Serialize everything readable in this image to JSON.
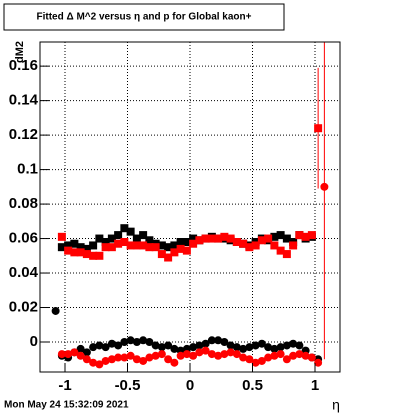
{
  "chart_data": {
    "type": "scatter",
    "title": "Fitted Δ M^2 versus η and p for Global kaon+",
    "y_label": "dM2",
    "x_label": "η",
    "timestamp": "Mon May 24 15:32:09 2021",
    "xlim": [
      -1.2,
      1.2
    ],
    "ylim": [
      -0.0174,
      0.174
    ],
    "xticks": [
      -1,
      -0.5,
      0,
      0.5,
      1
    ],
    "yticks": [
      0,
      0.02,
      0.04,
      0.06,
      0.08,
      0.1,
      0.12,
      0.14,
      0.16
    ],
    "grid": true,
    "series": [
      {
        "color": "#000000",
        "marker": "square",
        "x": [
          -1.025,
          -0.975,
          -0.925,
          -0.875,
          -0.825,
          -0.775,
          -0.725,
          -0.675,
          -0.625,
          -0.575,
          -0.525,
          -0.475,
          -0.425,
          -0.375,
          -0.325,
          -0.275,
          -0.225,
          -0.175,
          -0.125,
          -0.075,
          -0.025,
          0.025,
          0.075,
          0.125,
          0.175,
          0.225,
          0.275,
          0.325,
          0.375,
          0.425,
          0.475,
          0.525,
          0.575,
          0.625,
          0.675,
          0.725,
          0.775,
          0.825,
          0.875,
          0.925,
          0.975
        ],
        "values": [
          0.055,
          0.056,
          0.057,
          0.055,
          0.054,
          0.056,
          0.06,
          0.058,
          0.06,
          0.062,
          0.066,
          0.064,
          0.06,
          0.062,
          0.059,
          0.057,
          0.056,
          0.055,
          0.056,
          0.058,
          0.058,
          0.06,
          0.059,
          0.06,
          0.061,
          0.06,
          0.06,
          0.059,
          0.058,
          0.057,
          0.056,
          0.058,
          0.06,
          0.059,
          0.061,
          0.062,
          0.06,
          0.058,
          0.062,
          0.06,
          0.061
        ]
      },
      {
        "color": "#ff0000",
        "marker": "square",
        "x": [
          -1.025,
          -0.975,
          -0.925,
          -0.875,
          -0.825,
          -0.775,
          -0.725,
          -0.675,
          -0.625,
          -0.575,
          -0.525,
          -0.475,
          -0.425,
          -0.375,
          -0.325,
          -0.275,
          -0.225,
          -0.175,
          -0.125,
          -0.075,
          -0.025,
          0.025,
          0.075,
          0.125,
          0.175,
          0.225,
          0.275,
          0.325,
          0.375,
          0.425,
          0.475,
          0.525,
          0.575,
          0.625,
          0.675,
          0.725,
          0.775,
          0.825,
          0.875,
          0.925,
          0.975
        ],
        "values": [
          0.061,
          0.053,
          0.052,
          0.052,
          0.051,
          0.05,
          0.05,
          0.055,
          0.055,
          0.057,
          0.058,
          0.056,
          0.056,
          0.056,
          0.055,
          0.055,
          0.051,
          0.049,
          0.052,
          0.054,
          0.053,
          0.057,
          0.059,
          0.06,
          0.06,
          0.06,
          0.061,
          0.06,
          0.058,
          0.057,
          0.055,
          0.056,
          0.059,
          0.06,
          0.056,
          0.053,
          0.051,
          0.056,
          0.062,
          0.061,
          0.062
        ]
      },
      {
        "color": "#ff0000",
        "marker": "square",
        "x": [
          1.025
        ],
        "values": [
          0.124
        ],
        "errors": [
          0.035
        ]
      },
      {
        "color": "#000000",
        "marker": "circle",
        "x": [
          -1.075,
          -1.025,
          -0.975,
          -0.925,
          -0.875,
          -0.825,
          -0.775,
          -0.725,
          -0.675,
          -0.625,
          -0.575,
          -0.525,
          -0.475,
          -0.425,
          -0.375,
          -0.325,
          -0.275,
          -0.225,
          -0.175,
          -0.125,
          -0.075,
          -0.025,
          0.025,
          0.075,
          0.125,
          0.175,
          0.225,
          0.275,
          0.325,
          0.375,
          0.425,
          0.475,
          0.525,
          0.575,
          0.625,
          0.675,
          0.725,
          0.775,
          0.825,
          0.875,
          0.925,
          0.975,
          1.025
        ],
        "values": [
          0.018,
          -0.008,
          -0.009,
          -0.006,
          -0.004,
          -0.006,
          -0.003,
          -0.002,
          -0.003,
          -0.001,
          -0.002,
          0,
          0.001,
          0,
          0.001,
          0,
          -0.002,
          -0.003,
          -0.002,
          -0.004,
          -0.005,
          -0.004,
          -0.003,
          -0.002,
          -0.001,
          0.001,
          0.001,
          0,
          -0.002,
          -0.003,
          -0.004,
          -0.003,
          -0.002,
          -0.001,
          -0.003,
          -0.004,
          -0.003,
          -0.002,
          -0.001,
          -0.002,
          -0.005,
          -0.009,
          -0.01
        ]
      },
      {
        "color": "#ff0000",
        "marker": "circle",
        "x": [
          -1.075,
          -1.025,
          -0.975,
          -0.925,
          -0.875,
          -0.825,
          -0.775,
          -0.725,
          -0.675,
          -0.625,
          -0.575,
          -0.525,
          -0.475,
          -0.425,
          -0.375,
          -0.325,
          -0.275,
          -0.225,
          -0.175,
          -0.125,
          -0.075,
          -0.025,
          0.025,
          0.075,
          0.125,
          0.175,
          0.225,
          0.275,
          0.325,
          0.375,
          0.425,
          0.475,
          0.525,
          0.575,
          0.625,
          0.675,
          0.725,
          0.775,
          0.825,
          0.875,
          0.925,
          0.975,
          1.025
        ],
        "values": [
          null,
          -0.007,
          -0.007,
          -0.006,
          -0.008,
          -0.01,
          -0.012,
          -0.013,
          -0.011,
          -0.01,
          -0.009,
          -0.009,
          -0.008,
          -0.01,
          -0.011,
          -0.009,
          -0.008,
          -0.007,
          -0.01,
          -0.012,
          -0.008,
          -0.007,
          -0.008,
          -0.006,
          -0.005,
          -0.007,
          -0.008,
          -0.007,
          -0.006,
          -0.007,
          -0.009,
          -0.01,
          -0.012,
          -0.011,
          -0.009,
          -0.008,
          -0.007,
          -0.01,
          -0.008,
          -0.007,
          -0.008,
          -0.009,
          -0.012
        ]
      },
      {
        "color": "#ff0000",
        "marker": "circle",
        "x": [
          1.075
        ],
        "values": [
          0.09
        ],
        "errors": [
          0.1
        ]
      }
    ]
  }
}
